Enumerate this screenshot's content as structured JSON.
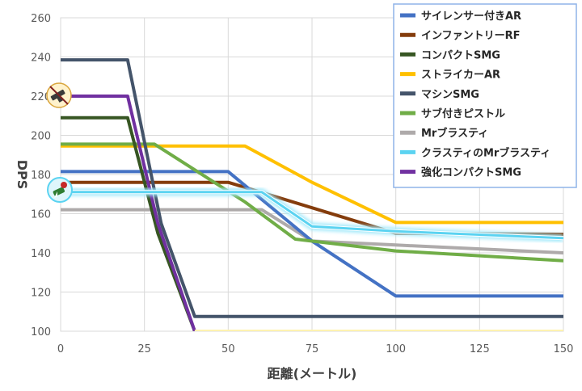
{
  "chart_data": {
    "type": "line",
    "title": "",
    "xlabel": "距離(メートル)",
    "ylabel": "DPS",
    "xlim": [
      0,
      150
    ],
    "ylim": [
      100,
      260
    ],
    "xticks": [
      0,
      25,
      50,
      75,
      100,
      125,
      150
    ],
    "yticks": [
      100,
      120,
      140,
      160,
      180,
      200,
      220,
      240,
      260
    ],
    "grid": true,
    "legend_position": "top-right",
    "series": [
      {
        "name": "サイレンサー付きAR",
        "color": "#4472C4",
        "points": [
          [
            0,
            181.5
          ],
          [
            50,
            181.5
          ],
          [
            75,
            146
          ],
          [
            100,
            118
          ],
          [
            150,
            118
          ]
        ]
      },
      {
        "name": "インファントリーRF",
        "color": "#843C0C",
        "points": [
          [
            0,
            176
          ],
          [
            50,
            176
          ],
          [
            75,
            163
          ],
          [
            100,
            150
          ],
          [
            150,
            149.5
          ]
        ]
      },
      {
        "name": "コンパクトSMG",
        "color": "#375623",
        "points": [
          [
            0,
            209
          ],
          [
            20,
            209
          ],
          [
            29,
            150
          ],
          [
            40,
            100
          ]
        ]
      },
      {
        "name": "ストライカーAR",
        "color": "#FFC000",
        "points": [
          [
            0,
            194.5
          ],
          [
            55,
            194.5
          ],
          [
            75,
            176
          ],
          [
            100,
            155.5
          ],
          [
            150,
            155.5
          ]
        ]
      },
      {
        "name": "マシンSMG",
        "color": "#44546A",
        "points": [
          [
            0,
            238.5
          ],
          [
            20,
            238.5
          ],
          [
            30,
            155
          ],
          [
            40,
            107.5
          ],
          [
            150,
            107.5
          ]
        ]
      },
      {
        "name": "サブ付きピストル",
        "color": "#70AD47",
        "points": [
          [
            0,
            195.5
          ],
          [
            28,
            195.5
          ],
          [
            55,
            166
          ],
          [
            70,
            147
          ],
          [
            100,
            141
          ],
          [
            150,
            136
          ]
        ]
      },
      {
        "name": "Mrブラスティ",
        "color": "#AEAAAA",
        "points": [
          [
            0,
            162
          ],
          [
            60,
            162
          ],
          [
            75,
            146
          ],
          [
            100,
            144
          ],
          [
            150,
            140
          ]
        ]
      },
      {
        "name": "クラスティのMrブラスティ",
        "color": "#5BD3F1",
        "points": [
          [
            0,
            171
          ],
          [
            60,
            171
          ],
          [
            75,
            153.5
          ],
          [
            100,
            151
          ],
          [
            150,
            147.5
          ]
        ]
      },
      {
        "name": "強化コンパクトSMG",
        "color": "#7030A0",
        "points": [
          [
            0,
            220
          ],
          [
            20,
            220
          ],
          [
            29,
            155
          ],
          [
            40,
            100
          ]
        ]
      }
    ]
  },
  "icons": {
    "weapon_a": "blaster-weapon-icon",
    "weapon_b": "rose-blaster-icon"
  }
}
